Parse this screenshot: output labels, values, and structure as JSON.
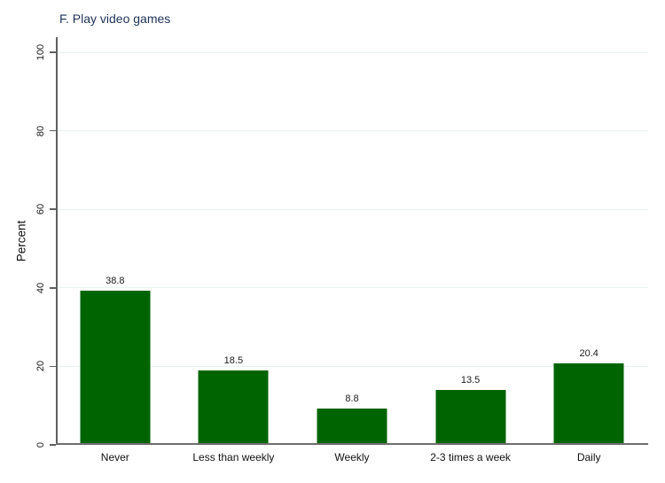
{
  "title": "F. Play video games",
  "chart_data": {
    "type": "bar",
    "categories": [
      "Never",
      "Less than weekly",
      "Weekly",
      "2-3 times a week",
      "Daily"
    ],
    "values": [
      38.8,
      18.5,
      8.8,
      13.5,
      20.4
    ],
    "value_labels": [
      "38.8",
      "18.5",
      "8.8",
      "13.5",
      "20.4"
    ],
    "title": "F. Play video games",
    "xlabel": "",
    "ylabel": "Percent",
    "ylim": [
      0,
      100
    ],
    "yticks": [
      0,
      20,
      40,
      60,
      80,
      100
    ],
    "grid": true,
    "legend": "none",
    "bar_color": "#006400"
  },
  "colors": {
    "bar": "#006400",
    "gridline": "#eaf2f3",
    "axis": "#5f5f5f",
    "title": "#1e3257",
    "text": "#1a1a1a",
    "background": "#ffffff"
  }
}
